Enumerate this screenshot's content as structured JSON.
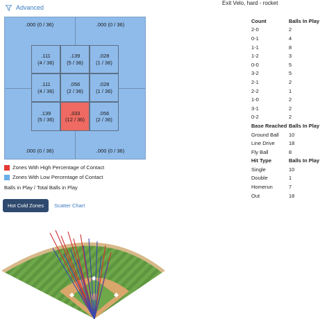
{
  "header": {
    "advanced_label": "Advanced",
    "title": "Exit Velo, hard - rocket"
  },
  "zones": {
    "outer": [
      {
        "label": ".000 (0 / 36)"
      },
      {
        "label": ".000 (0 / 36)"
      },
      {
        "label": ".000 (0 / 36)"
      },
      {
        "label": ".000 (0 / 36)"
      }
    ],
    "inner": [
      {
        "avg": ".111",
        "ratio": "(4 / 36)",
        "hot": false
      },
      {
        "avg": ".139",
        "ratio": "(5 / 36)",
        "hot": false
      },
      {
        "avg": ".028",
        "ratio": "(1 / 36)",
        "hot": false
      },
      {
        "avg": ".111",
        "ratio": "(4 / 36)",
        "hot": false
      },
      {
        "avg": ".056",
        "ratio": "(2 / 36)",
        "hot": false
      },
      {
        "avg": ".028",
        "ratio": "(1 / 36)",
        "hot": false
      },
      {
        "avg": ".139",
        "ratio": "(5 / 36)",
        "hot": false
      },
      {
        "avg": ".333",
        "ratio": "(12 / 36)",
        "hot": true
      },
      {
        "avg": ".056",
        "ratio": "(2 / 36)",
        "hot": false
      }
    ]
  },
  "colors": {
    "high": "#e53935",
    "low": "#6aaee8"
  },
  "legend": {
    "high_label": "Zones With High Percentage of Contact",
    "low_label": "Zones With Low Percentage of Contact",
    "caption": "Balls in Play / Total Balls in Play"
  },
  "tabs": {
    "hot_cold": "Hot Cold Zones",
    "scatter": "Scatter Chart"
  },
  "stats": {
    "count": {
      "header": [
        "Count",
        "Balls In Play"
      ],
      "rows": [
        [
          "2-0",
          "2"
        ],
        [
          "0-1",
          "4"
        ],
        [
          "1-1",
          "8"
        ],
        [
          "1-2",
          "3"
        ],
        [
          "0-0",
          "5"
        ],
        [
          "3-2",
          "5"
        ],
        [
          "2-1",
          "2"
        ],
        [
          "2-2",
          "1"
        ],
        [
          "1-0",
          "2"
        ],
        [
          "3-1",
          "2"
        ],
        [
          "0-2",
          "2"
        ]
      ]
    },
    "base": {
      "header": [
        "Base Reached",
        "Balls In Play"
      ],
      "rows": [
        [
          "Ground Ball",
          "10"
        ],
        [
          "Line Drive",
          "18"
        ],
        [
          "Fly Ball",
          "8"
        ]
      ]
    },
    "hit": {
      "header": [
        "Hit Type",
        "Balls In Play"
      ],
      "rows": [
        [
          "Single",
          "10"
        ],
        [
          "Double",
          "1"
        ],
        [
          "Homerun",
          "7"
        ],
        [
          "Out",
          "18"
        ]
      ]
    }
  }
}
